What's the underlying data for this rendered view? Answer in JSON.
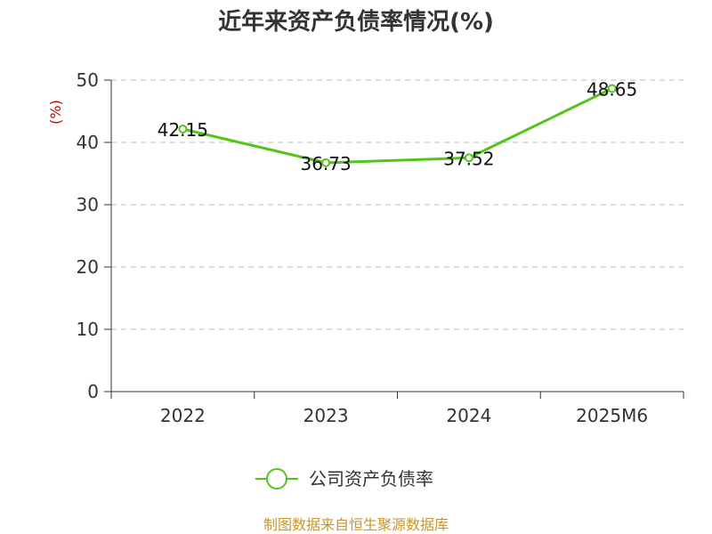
{
  "chart_data": {
    "type": "line",
    "title": "近年来资产负债率情况(%)",
    "ylabel": "(%)",
    "xlabel": "",
    "categories": [
      "2022",
      "2023",
      "2024",
      "2025M6"
    ],
    "series": [
      {
        "name": "公司资产负债率",
        "values": [
          42.15,
          36.73,
          37.52,
          48.65
        ],
        "color": "#52c41a"
      }
    ],
    "ylim": [
      0,
      50
    ],
    "yticks": [
      0,
      10,
      20,
      30,
      40,
      50
    ],
    "grid": true,
    "legend": "bottom"
  },
  "source": "制图数据来自恒生聚源数据库"
}
